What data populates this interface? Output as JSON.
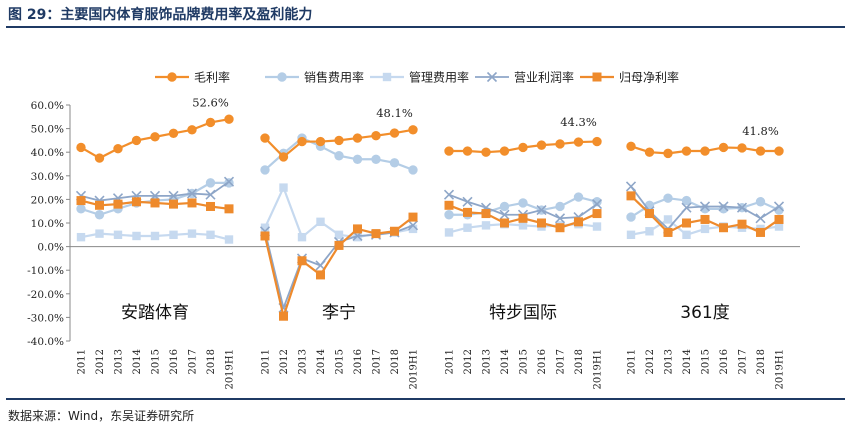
{
  "header": {
    "figure_title": "图 29：主要国内体育服饰品牌费用率及盈利能力"
  },
  "footer": {
    "source": "数据来源：Wind，东吴证券研究所"
  },
  "colors": {
    "gross_margin": "#f28e2b",
    "selling": "#b4cde6",
    "admin": "#c6d9ef",
    "operating": "#8ea6c8",
    "net": "#ee8a2c",
    "title": "#1f3a64"
  },
  "chart_data": {
    "type": "line",
    "title": "主要国内体育服饰品牌费用率及盈利能力",
    "ylabel": "",
    "xlabel": "",
    "ylim": [
      -40,
      60
    ],
    "yticks": [
      "-40.0%",
      "-30.0%",
      "-20.0%",
      "-10.0%",
      "0.0%",
      "10.0%",
      "20.0%",
      "30.0%",
      "40.0%",
      "50.0%",
      "60.0%"
    ],
    "categories": [
      "2011",
      "2012",
      "2013",
      "2014",
      "2015",
      "2016",
      "2017",
      "2018",
      "2019H1"
    ],
    "legend_position": "top",
    "legend": [
      "毛利率",
      "销售费用率",
      "管理费用率",
      "营业利润率",
      "归母净利率"
    ],
    "groups": [
      {
        "name": "安踏体育",
        "annotation": "52.6%",
        "series": {
          "gross": [
            42.0,
            37.5,
            41.5,
            45.0,
            46.5,
            48.0,
            49.5,
            52.6,
            54.0
          ],
          "selling": [
            16.0,
            13.5,
            16.0,
            18.5,
            19.5,
            20.0,
            22.5,
            27.0,
            27.0
          ],
          "admin": [
            4.0,
            5.5,
            5.0,
            4.5,
            4.5,
            5.0,
            5.5,
            5.0,
            3.0
          ],
          "operating": [
            21.5,
            19.5,
            20.5,
            21.5,
            21.5,
            21.5,
            22.5,
            22.0,
            27.5
          ],
          "net": [
            19.5,
            17.5,
            18.0,
            19.0,
            18.5,
            18.0,
            18.5,
            17.0,
            16.0
          ]
        }
      },
      {
        "name": "李宁",
        "annotation": "48.1%",
        "series": {
          "gross": [
            46.0,
            38.0,
            44.5,
            44.5,
            45.0,
            46.0,
            47.0,
            48.1,
            49.5
          ],
          "selling": [
            32.5,
            39.5,
            46.0,
            42.5,
            38.5,
            37.0,
            37.0,
            35.5,
            32.5
          ],
          "admin": [
            8.0,
            25.0,
            4.0,
            10.5,
            5.0,
            4.0,
            5.5,
            6.0,
            7.5
          ],
          "operating": [
            6.5,
            -26.0,
            -5.0,
            -8.0,
            2.0,
            4.5,
            5.0,
            6.0,
            9.0
          ],
          "net": [
            4.5,
            -29.5,
            -6.0,
            -12.0,
            0.5,
            7.5,
            5.5,
            6.5,
            12.5
          ]
        }
      },
      {
        "name": "特步国际",
        "annotation": "44.3%",
        "series": {
          "gross": [
            40.5,
            40.5,
            40.0,
            40.5,
            42.0,
            43.0,
            43.5,
            44.3,
            44.5
          ],
          "selling": [
            13.5,
            13.5,
            14.5,
            17.0,
            18.5,
            15.5,
            17.0,
            21.0,
            19.0
          ],
          "admin": [
            6.0,
            8.0,
            9.0,
            9.5,
            9.0,
            8.5,
            9.0,
            9.5,
            8.5
          ],
          "operating": [
            22.0,
            19.0,
            16.5,
            13.5,
            13.5,
            15.5,
            12.0,
            12.5,
            18.0
          ],
          "net": [
            17.5,
            14.5,
            14.0,
            10.0,
            12.0,
            10.0,
            8.0,
            10.5,
            14.0
          ]
        }
      },
      {
        "name": "361度",
        "annotation": "41.8%",
        "series": {
          "gross": [
            42.5,
            40.0,
            39.5,
            40.5,
            40.5,
            42.0,
            41.8,
            40.5,
            40.5
          ],
          "selling": [
            12.5,
            17.5,
            20.5,
            19.5,
            16.0,
            16.0,
            16.5,
            19.0,
            15.5
          ],
          "admin": [
            5.0,
            6.5,
            11.5,
            5.0,
            7.5,
            8.5,
            8.0,
            7.5,
            8.5
          ],
          "operating": [
            25.5,
            15.0,
            7.5,
            16.5,
            17.0,
            17.0,
            16.5,
            12.0,
            17.0
          ],
          "net": [
            21.5,
            14.0,
            6.0,
            10.0,
            11.5,
            8.0,
            9.5,
            6.0,
            11.5
          ]
        }
      }
    ]
  }
}
